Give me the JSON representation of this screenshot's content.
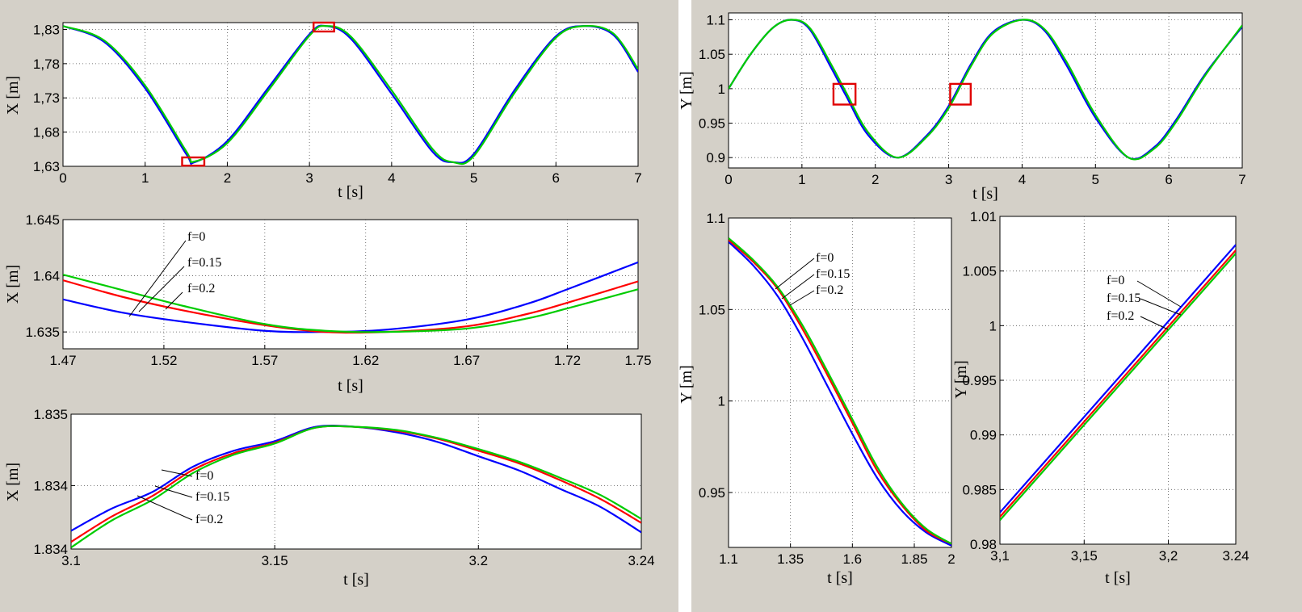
{
  "chart_data": [
    {
      "id": "p1",
      "type": "line",
      "xlabel": "t [s]",
      "ylabel": "X [m]",
      "xlim": [
        0,
        7
      ],
      "ylim": [
        1.63,
        1.84
      ],
      "xticks": [
        0,
        1,
        2,
        3,
        4,
        5,
        6,
        7
      ],
      "xtick_labels": [
        "0",
        "1",
        "2",
        "3",
        "4",
        "5",
        "6",
        "7"
      ],
      "yticks": [
        1.63,
        1.68,
        1.73,
        1.78,
        1.83
      ],
      "ytick_labels": [
        "1,63",
        "1,68",
        "1,73",
        "1,78",
        "1,83"
      ],
      "grid": true,
      "series": [
        {
          "color": "#0000ff",
          "x": [
            0,
            0.5,
            1,
            1.5,
            1.6,
            2,
            2.5,
            3,
            3.2,
            3.5,
            4,
            4.5,
            4.75,
            5,
            5.5,
            6,
            6.35,
            6.7,
            7
          ],
          "y": [
            1.835,
            1.812,
            1.744,
            1.648,
            1.636,
            1.667,
            1.745,
            1.823,
            1.835,
            1.817,
            1.736,
            1.651,
            1.636,
            1.648,
            1.742,
            1.82,
            1.835,
            1.822,
            1.768
          ]
        },
        {
          "color": "#00cc00",
          "x": [
            0,
            0.5,
            1,
            1.5,
            1.6,
            2,
            2.5,
            3,
            3.2,
            3.5,
            4,
            4.5,
            4.75,
            5,
            5.5,
            6,
            6.35,
            6.7,
            7
          ],
          "y": [
            1.835,
            1.814,
            1.748,
            1.652,
            1.637,
            1.664,
            1.741,
            1.821,
            1.835,
            1.82,
            1.741,
            1.655,
            1.636,
            1.645,
            1.738,
            1.818,
            1.835,
            1.824,
            1.772
          ]
        }
      ],
      "highlights": [
        {
          "x0": 1.45,
          "x1": 1.72,
          "y0": 1.631,
          "y1": 1.643
        },
        {
          "x0": 3.05,
          "x1": 3.3,
          "y0": 1.827,
          "y1": 1.84
        }
      ]
    },
    {
      "id": "p2",
      "type": "line",
      "xlabel": "t [s]",
      "ylabel": "X [m]",
      "xlim": [
        1.47,
        1.755
      ],
      "ylim": [
        1.6335,
        1.645
      ],
      "xticks": [
        1.47,
        1.52,
        1.57,
        1.62,
        1.67,
        1.72,
        1.755
      ],
      "xtick_labels": [
        "1.47",
        "1.52",
        "1.57",
        "1.62",
        "1.67",
        "1.72",
        "1.75"
      ],
      "yticks": [
        1.635,
        1.64,
        1.645
      ],
      "ytick_labels": [
        "1.635",
        "1.64",
        "1.645"
      ],
      "grid": true,
      "series": [
        {
          "name": "f=0",
          "color": "#0000ff",
          "x": [
            1.47,
            1.5,
            1.53,
            1.57,
            1.6,
            1.63,
            1.67,
            1.7,
            1.72,
            1.755
          ],
          "y": [
            1.6379,
            1.6367,
            1.6359,
            1.6351,
            1.635,
            1.6352,
            1.6361,
            1.6375,
            1.6388,
            1.6412
          ]
        },
        {
          "name": "f=0.15",
          "color": "#ff0000",
          "x": [
            1.47,
            1.5,
            1.53,
            1.57,
            1.6,
            1.63,
            1.67,
            1.7,
            1.72,
            1.755
          ],
          "y": [
            1.6396,
            1.6381,
            1.6369,
            1.6356,
            1.635,
            1.635,
            1.6355,
            1.6366,
            1.6376,
            1.6395
          ]
        },
        {
          "name": "f=0.2",
          "color": "#00cc00",
          "x": [
            1.47,
            1.5,
            1.53,
            1.57,
            1.6,
            1.63,
            1.67,
            1.7,
            1.72,
            1.755
          ],
          "y": [
            1.6401,
            1.6387,
            1.6373,
            1.6357,
            1.6351,
            1.635,
            1.6353,
            1.6362,
            1.6371,
            1.6388
          ]
        }
      ],
      "legend": [
        "f=0",
        "f=0.15",
        "f=0.2"
      ]
    },
    {
      "id": "p3",
      "type": "line",
      "xlabel": "t [s]",
      "ylabel": "X [m]",
      "xlim": [
        3.1,
        3.24
      ],
      "ylim": [
        1.8336,
        1.8353
      ],
      "xticks": [
        3.1,
        3.15,
        3.2,
        3.24
      ],
      "xtick_labels": [
        "3.1",
        "3.15",
        "3.2",
        "3.24"
      ],
      "yticks": [
        1.8336,
        1.8344,
        1.8353
      ],
      "ytick_labels": [
        "1.834",
        "1.834",
        "1.835"
      ],
      "grid": true,
      "series": [
        {
          "name": "f=0",
          "color": "#0000ff",
          "x": [
            3.1,
            3.11,
            3.12,
            3.13,
            3.14,
            3.15,
            3.16,
            3.17,
            3.18,
            3.19,
            3.2,
            3.21,
            3.22,
            3.23,
            3.24
          ],
          "y": [
            1.83383,
            1.83411,
            1.83432,
            1.83464,
            1.83484,
            1.83496,
            1.83514,
            1.83514,
            1.83507,
            1.83495,
            1.83477,
            1.83459,
            1.83436,
            1.83413,
            1.83381
          ]
        },
        {
          "name": "f=0.15",
          "color": "#ff0000",
          "x": [
            3.1,
            3.11,
            3.12,
            3.13,
            3.14,
            3.15,
            3.16,
            3.17,
            3.18,
            3.19,
            3.2,
            3.21,
            3.22,
            3.23,
            3.24
          ],
          "y": [
            1.83369,
            1.83401,
            1.83427,
            1.8346,
            1.83481,
            1.83494,
            1.83513,
            1.83514,
            1.83509,
            1.83499,
            1.83484,
            1.83468,
            1.83447,
            1.83423,
            1.83393
          ]
        },
        {
          "name": "f=0.2",
          "color": "#00cc00",
          "x": [
            3.1,
            3.11,
            3.12,
            3.13,
            3.14,
            3.15,
            3.16,
            3.17,
            3.18,
            3.19,
            3.2,
            3.21,
            3.22,
            3.23,
            3.24
          ],
          "y": [
            1.83362,
            1.83396,
            1.83422,
            1.83456,
            1.83479,
            1.83493,
            1.83513,
            1.83514,
            1.8351,
            1.835,
            1.83486,
            1.8347,
            1.8345,
            1.83428,
            1.83398
          ]
        }
      ],
      "legend": [
        "f=0",
        "f=0.15",
        "f=0.2"
      ]
    },
    {
      "id": "p4",
      "type": "line",
      "xlabel": "t [s]",
      "ylabel": "Y [m]",
      "xlim": [
        0,
        7
      ],
      "ylim": [
        0.885,
        1.11
      ],
      "xticks": [
        0,
        1,
        2,
        3,
        4,
        5,
        6,
        7
      ],
      "xtick_labels": [
        "0",
        "1",
        "2",
        "3",
        "4",
        "5",
        "6",
        "7"
      ],
      "yticks": [
        0.9,
        0.95,
        1,
        1.05,
        1.1
      ],
      "ytick_labels": [
        "0.9",
        "0.95",
        "1",
        "1.05",
        "1.1"
      ],
      "grid": true,
      "series": [
        {
          "color": "#0000ff",
          "x": [
            0,
            0.3,
            0.6,
            0.85,
            1.1,
            1.4,
            1.6,
            1.9,
            2.3,
            2.7,
            3.0,
            3.3,
            3.6,
            4.0,
            4.3,
            4.6,
            5.0,
            5.45,
            5.8,
            6.1,
            6.5,
            7
          ],
          "y": [
            1.0,
            1.05,
            1.088,
            1.1,
            1.087,
            1.03,
            0.99,
            0.933,
            0.9,
            0.932,
            0.975,
            1.035,
            1.082,
            1.1,
            1.085,
            1.035,
            0.958,
            0.9,
            0.915,
            0.955,
            1.022,
            1.09
          ]
        },
        {
          "name": "",
          "color": "#00cc00",
          "x": [
            0,
            0.3,
            0.6,
            0.85,
            1.1,
            1.4,
            1.6,
            1.9,
            2.3,
            2.7,
            3.0,
            3.3,
            3.6,
            4.0,
            4.3,
            4.6,
            5.0,
            5.45,
            5.8,
            6.1,
            6.5,
            7
          ],
          "y": [
            1.0,
            1.05,
            1.088,
            1.1,
            1.089,
            1.035,
            0.995,
            0.937,
            0.9,
            0.93,
            0.972,
            1.032,
            1.08,
            1.1,
            1.087,
            1.04,
            0.962,
            0.9,
            0.913,
            0.952,
            1.02,
            1.092
          ]
        }
      ],
      "highlights": [
        {
          "x0": 1.43,
          "x1": 1.73,
          "y0": 0.977,
          "y1": 1.007
        },
        {
          "x0": 3.02,
          "x1": 3.3,
          "y0": 0.977,
          "y1": 1.007
        }
      ]
    },
    {
      "id": "p5",
      "type": "line",
      "xlabel": "t [s]",
      "ylabel": "Y [m]",
      "xlim": [
        1.1,
        2
      ],
      "ylim": [
        0.92,
        1.1
      ],
      "xticks": [
        1.1,
        1.35,
        1.6,
        1.85,
        2
      ],
      "xtick_labels": [
        "1.1",
        "1.35",
        "1.6",
        "1.85",
        "2"
      ],
      "yticks": [
        0.95,
        1,
        1.05,
        1.1
      ],
      "ytick_labels": [
        "0.95",
        "1",
        "1.05",
        "1.1"
      ],
      "grid": true,
      "series": [
        {
          "name": "f=0",
          "color": "#0000ff",
          "x": [
            1.1,
            1.2,
            1.3,
            1.4,
            1.5,
            1.6,
            1.7,
            1.8,
            1.9,
            2.0
          ],
          "y": [
            1.087,
            1.074,
            1.057,
            1.034,
            1.008,
            0.982,
            0.958,
            0.94,
            0.928,
            0.921
          ]
        },
        {
          "name": "f=0.15",
          "color": "#ff0000",
          "x": [
            1.1,
            1.2,
            1.3,
            1.4,
            1.5,
            1.6,
            1.7,
            1.8,
            1.9,
            2.0
          ],
          "y": [
            1.088,
            1.076,
            1.061,
            1.039,
            1.014,
            0.988,
            0.962,
            0.943,
            0.929,
            0.922
          ]
        },
        {
          "name": "f=0.2",
          "color": "#00cc00",
          "x": [
            1.1,
            1.2,
            1.3,
            1.4,
            1.5,
            1.6,
            1.7,
            1.8,
            1.9,
            2.0
          ],
          "y": [
            1.089,
            1.077,
            1.062,
            1.041,
            1.016,
            0.99,
            0.964,
            0.944,
            0.93,
            0.922
          ]
        }
      ],
      "legend": [
        "f=0",
        "f=0.15",
        "f=0.2"
      ]
    },
    {
      "id": "p6",
      "type": "line",
      "xlabel": "t [s]",
      "ylabel": "Y [m]",
      "xlim": [
        3.1,
        3.24
      ],
      "ylim": [
        0.98,
        1.01
      ],
      "xticks": [
        3.1,
        3.15,
        3.2,
        3.24
      ],
      "xtick_labels": [
        "3,1",
        "3,15",
        "3,2",
        "3.24"
      ],
      "yticks": [
        0.98,
        0.985,
        0.99,
        0.995,
        1,
        1.005,
        1.01
      ],
      "ytick_labels": [
        "0.98",
        "0.985",
        "0.99",
        "0.995",
        "1",
        "1.005",
        "1.01"
      ],
      "grid": true,
      "series": [
        {
          "name": "f=0",
          "color": "#0000ff",
          "x": [
            3.1,
            3.24
          ],
          "y": [
            0.9829,
            1.0074
          ]
        },
        {
          "name": "f=0.15",
          "color": "#ff0000",
          "x": [
            3.1,
            3.24
          ],
          "y": [
            0.9825,
            1.0069
          ]
        },
        {
          "name": "f=0.2",
          "color": "#00cc00",
          "x": [
            3.1,
            3.24
          ],
          "y": [
            0.9822,
            1.0066
          ]
        }
      ],
      "legend": [
        "f=0",
        "f=0.15",
        "f=0.2"
      ]
    }
  ]
}
